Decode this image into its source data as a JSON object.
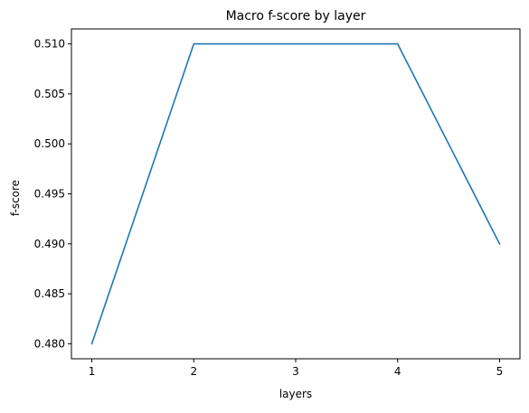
{
  "chart_data": {
    "type": "line",
    "title": "Macro f-score by layer",
    "xlabel": "layers",
    "ylabel": "f-score",
    "x": [
      1,
      2,
      3,
      4,
      5
    ],
    "series": [
      {
        "values": [
          0.48,
          0.51,
          0.51,
          0.51,
          0.49
        ],
        "color": "#1f77b4"
      }
    ],
    "xticks": [
      1,
      2,
      3,
      4,
      5
    ],
    "xtick_labels": [
      "1",
      "2",
      "3",
      "4",
      "5"
    ],
    "yticks": [
      0.48,
      0.485,
      0.49,
      0.495,
      0.5,
      0.505,
      0.51
    ],
    "ytick_labels": [
      "0.480",
      "0.485",
      "0.490",
      "0.495",
      "0.500",
      "0.505",
      "0.510"
    ],
    "xlim": [
      0.8,
      5.2
    ],
    "ylim": [
      0.4785,
      0.5115
    ],
    "grid": false,
    "legend": "none"
  }
}
